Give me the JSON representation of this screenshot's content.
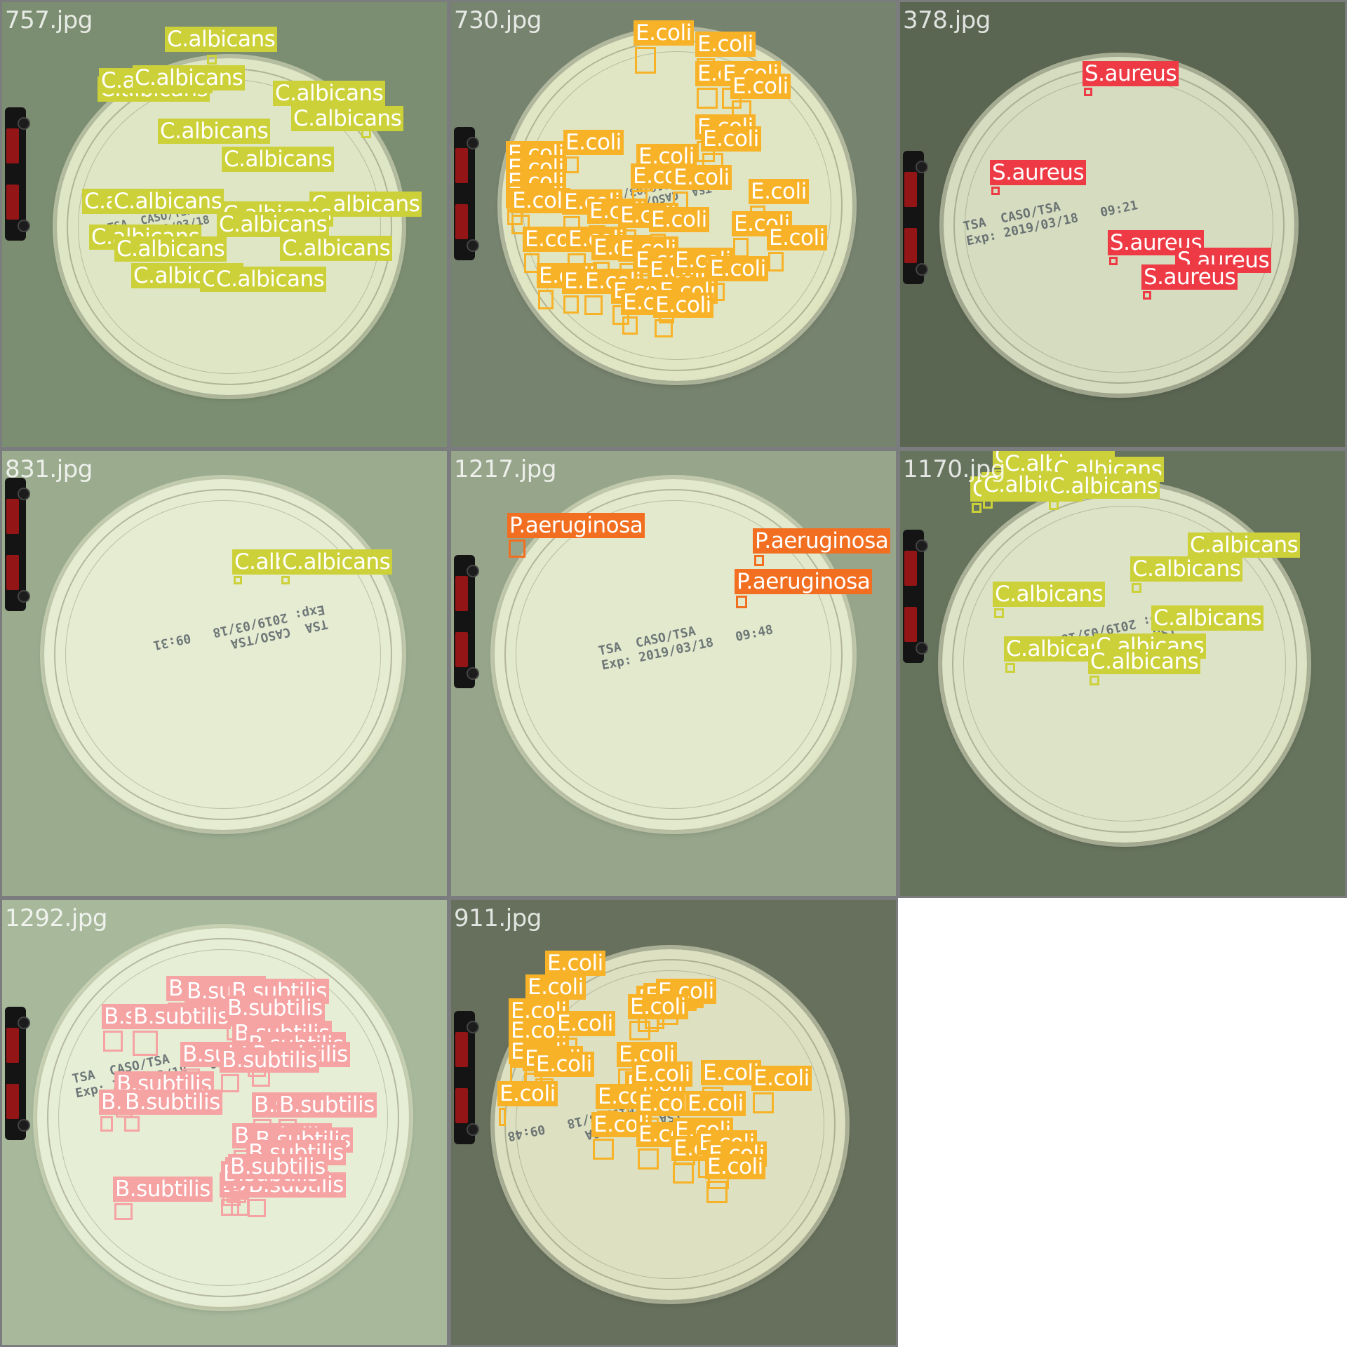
{
  "colors": {
    "C.albicans": "#ccd13a",
    "E.coli": "#f8b227",
    "S.aureus": "#ee3a44",
    "P.aeruginosa": "#f26f21",
    "B.subtilis": "#f5a3a3"
  },
  "tiles": [
    {
      "filename": "757.jpg",
      "background": "#7c8e71",
      "dish_fill": "#dfe6c6",
      "imprint": "TSA  CASO/TSA\nExp: 2019/03/18   09:48",
      "detections": [
        {
          "cls": "C.albicans"
        },
        {
          "cls": "C.albicans"
        },
        {
          "cls": "C.albicans"
        },
        {
          "cls": "C.albicans"
        },
        {
          "cls": "C.albicans"
        },
        {
          "cls": "C.albicans"
        },
        {
          "cls": "C.albicans"
        },
        {
          "cls": "C.albicans"
        },
        {
          "cls": "C.albicans"
        },
        {
          "cls": "C.albicans"
        },
        {
          "cls": "C.albicans"
        },
        {
          "cls": "C.albicans"
        },
        {
          "cls": "C.albicans"
        },
        {
          "cls": "C.albicans"
        },
        {
          "cls": "C.albicans"
        },
        {
          "cls": "C.albicans"
        },
        {
          "cls": "C.albicans"
        },
        {
          "cls": "C.albicans"
        },
        {
          "cls": "C.albicans"
        }
      ]
    },
    {
      "filename": "730.jpg",
      "background": "#76836e",
      "dish_fill": "#e0e6c4",
      "imprint": "TSA  CASO/TSA\nExp: 2019/03/18   09:47",
      "detections": [
        {
          "cls": "E.coli"
        },
        {
          "cls": "E.coli"
        },
        {
          "cls": "E.coli"
        },
        {
          "cls": "E.coli"
        },
        {
          "cls": "E.coli"
        },
        {
          "cls": "E.coli"
        },
        {
          "cls": "E.coli"
        },
        {
          "cls": "E.coli"
        },
        {
          "cls": "E.coli"
        },
        {
          "cls": "E.coli"
        },
        {
          "cls": "E.coli"
        },
        {
          "cls": "E.coli"
        },
        {
          "cls": "E.coli"
        },
        {
          "cls": "E.coli"
        },
        {
          "cls": "E.coli"
        },
        {
          "cls": "E.coli"
        },
        {
          "cls": "E.coli"
        },
        {
          "cls": "E.coli"
        },
        {
          "cls": "E.coli"
        },
        {
          "cls": "E.coli"
        },
        {
          "cls": "E.coli"
        },
        {
          "cls": "E.coli"
        },
        {
          "cls": "E.coli"
        },
        {
          "cls": "E.coli"
        },
        {
          "cls": "E.coli"
        },
        {
          "cls": "E.coli"
        },
        {
          "cls": "E.coli"
        },
        {
          "cls": "E.coli"
        },
        {
          "cls": "E.coli"
        },
        {
          "cls": "E.coli"
        },
        {
          "cls": "E.coli"
        },
        {
          "cls": "E.coli"
        },
        {
          "cls": "E.coli"
        },
        {
          "cls": "E.coli"
        },
        {
          "cls": "E.coli"
        },
        {
          "cls": "E.coli"
        },
        {
          "cls": "E.coli"
        },
        {
          "cls": "E.coli"
        }
      ]
    },
    {
      "filename": "378.jpg",
      "background": "#5a6652",
      "dish_fill": "#d6dcc0",
      "imprint": "TSA  CASO/TSA\nExp: 2019/03/18   09:21",
      "detections": [
        {
          "cls": "S.aureus"
        },
        {
          "cls": "S.aureus"
        },
        {
          "cls": "S.aureus"
        },
        {
          "cls": "S.aureus"
        },
        {
          "cls": "S.aureus"
        }
      ]
    },
    {
      "filename": "831.jpg",
      "background": "#9aab8e",
      "dish_fill": "#e6ecd2",
      "imprint": "TSA  CASO/TSA\nExp: 2019/03/18   09:31",
      "detections": [
        {
          "cls": "C.albicans"
        },
        {
          "cls": "C.albicans"
        }
      ]
    },
    {
      "filename": "1217.jpg",
      "background": "#97a68b",
      "dish_fill": "#e3e9cd",
      "imprint": "TSA  CASO/TSA\nExp: 2019/03/18   09:48",
      "detections": [
        {
          "cls": "P.aeruginosa"
        },
        {
          "cls": "P.aeruginosa"
        },
        {
          "cls": "P.aeruginosa"
        }
      ]
    },
    {
      "filename": "1170.jpg",
      "background": "#66735d",
      "dish_fill": "#dde3c6",
      "imprint": "TSA  CASO/TSA\nExp: 2019/03/18",
      "detections": [
        {
          "cls": "C.albicans"
        },
        {
          "cls": "C.albicans"
        },
        {
          "cls": "C.albicans"
        },
        {
          "cls": "C.albicans"
        },
        {
          "cls": "C.albicans"
        },
        {
          "cls": "C.albicans"
        },
        {
          "cls": "C.albicans"
        },
        {
          "cls": "C.albicans"
        },
        {
          "cls": "C.albicans"
        },
        {
          "cls": "C.albicans"
        },
        {
          "cls": "C.albicans"
        },
        {
          "cls": "C.albicans"
        },
        {
          "cls": "C.albicans"
        }
      ]
    },
    {
      "filename": "1292.jpg",
      "background": "#a7b89b",
      "dish_fill": "#e7eed6",
      "imprint": "TSA  CASO/TSA\nExp: 2019/03/18   09:48",
      "detections": [
        {
          "cls": "B.subtilis"
        },
        {
          "cls": "B.subtilis"
        },
        {
          "cls": "B.subtilis"
        },
        {
          "cls": "B.subtilis"
        },
        {
          "cls": "B.subtilis"
        },
        {
          "cls": "B.subtilis"
        },
        {
          "cls": "B.subtilis"
        },
        {
          "cls": "B.subtilis"
        },
        {
          "cls": "B.subtilis"
        },
        {
          "cls": "B.subtilis"
        },
        {
          "cls": "B.subtilis"
        },
        {
          "cls": "B.subtilis"
        },
        {
          "cls": "B.subtilis"
        },
        {
          "cls": "B.subtilis"
        },
        {
          "cls": "B.subtilis"
        },
        {
          "cls": "B.subtilis"
        },
        {
          "cls": "B.subtilis"
        },
        {
          "cls": "B.subtilis"
        },
        {
          "cls": "B.subtilis"
        },
        {
          "cls": "B.subtilis"
        },
        {
          "cls": "B.subtilis"
        },
        {
          "cls": "B.subtilis"
        },
        {
          "cls": "B.subtilis"
        },
        {
          "cls": "B.subtilis"
        },
        {
          "cls": "B.subtilis"
        },
        {
          "cls": "B.subtilis"
        }
      ]
    },
    {
      "filename": "911.jpg",
      "background": "#66705c",
      "dish_fill": "#dde1c2",
      "imprint": "TSA  CASO/TSA\nExp: 2019/03/18   09:48",
      "detections": [
        {
          "cls": "E.coli"
        },
        {
          "cls": "E.coli"
        },
        {
          "cls": "E.coli"
        },
        {
          "cls": "E.coli"
        },
        {
          "cls": "E.coli"
        },
        {
          "cls": "E.coli"
        },
        {
          "cls": "E.coli"
        },
        {
          "cls": "E.coli"
        },
        {
          "cls": "E.coli"
        },
        {
          "cls": "E.coli"
        },
        {
          "cls": "E.coli"
        },
        {
          "cls": "E.coli"
        },
        {
          "cls": "E.coli"
        },
        {
          "cls": "E.coli"
        },
        {
          "cls": "E.coli"
        },
        {
          "cls": "E.coli"
        },
        {
          "cls": "E.coli"
        },
        {
          "cls": "E.coli"
        },
        {
          "cls": "E.coli"
        },
        {
          "cls": "E.coli"
        },
        {
          "cls": "E.coli"
        },
        {
          "cls": "E.coli"
        },
        {
          "cls": "E.coli"
        },
        {
          "cls": "E.coli"
        },
        {
          "cls": "E.coli"
        },
        {
          "cls": "E.coli"
        },
        {
          "cls": "E.coli"
        },
        {
          "cls": "E.coli"
        }
      ]
    }
  ]
}
